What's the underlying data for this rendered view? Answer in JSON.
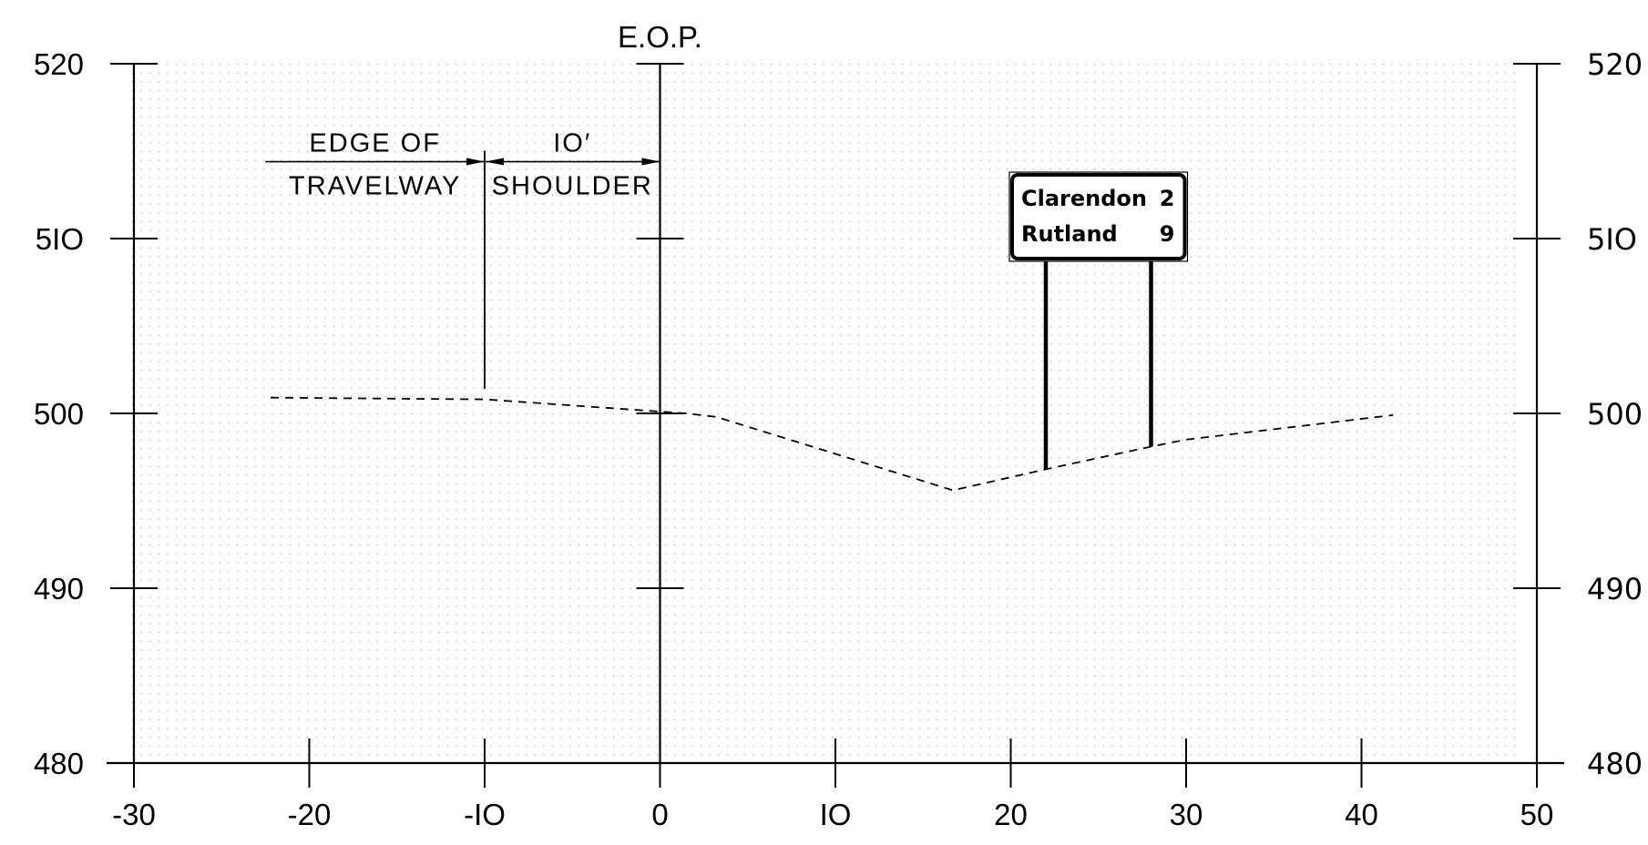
{
  "chart_data": {
    "type": "line",
    "title": "",
    "xlabel": "",
    "ylabel": "",
    "xlim": [
      -30,
      50
    ],
    "ylim": [
      480,
      520
    ],
    "x_ticks": [
      -30,
      -20,
      -10,
      0,
      10,
      20,
      30,
      40,
      50
    ],
    "x_tick_labels": [
      "-30",
      "-20",
      "-IO",
      "0",
      "IO",
      "20",
      "30",
      "40",
      "50"
    ],
    "y_ticks": [
      480,
      490,
      500,
      510,
      520
    ],
    "y_tick_labels_left": [
      "480",
      "490",
      "500",
      "5IO",
      "520"
    ],
    "y_tick_labels_right": [
      "480",
      "490",
      "500",
      "5IO",
      "520"
    ],
    "grid": "dotted",
    "series": [
      {
        "style": "dashed",
        "x": [
          -22.2,
          -10,
          1.5,
          3.2,
          16.7,
          22,
          28,
          30,
          41.8
        ],
        "y": [
          500.9,
          500.8,
          500.0,
          499.8,
          495.6,
          496.8,
          498.1,
          498.5,
          499.9
        ]
      }
    ],
    "reference_line": {
      "x": 0,
      "label": "E.O.P."
    },
    "annotations": {
      "edge_line1": "EDGE OF",
      "edge_line2": "TRAVELWAY",
      "shoulder_line1": "IO′",
      "shoulder_line2": "SHOULDER",
      "edge_x": -10,
      "eop_x": 0,
      "dim_y": 514.4
    },
    "sign": {
      "rows": [
        {
          "place": "Clarendon",
          "distance": "2"
        },
        {
          "place": "Rutland",
          "distance": "9"
        }
      ],
      "post_x": [
        22,
        28
      ]
    }
  }
}
